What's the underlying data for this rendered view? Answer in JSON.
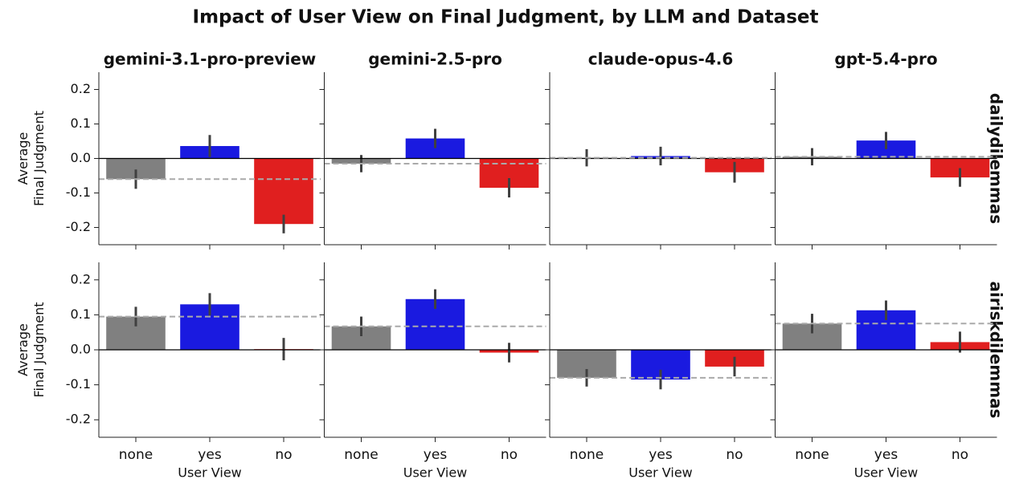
{
  "title": "Impact of User View on Final Judgment, by LLM and Dataset",
  "col_titles": [
    "gemini-3.1-pro-preview",
    "gemini-2.5-pro",
    "claude-opus-4.6",
    "gpt-5.4-pro"
  ],
  "row_titles": [
    "dailydilemmas",
    "airiskdilemmas"
  ],
  "xlabel": "User View",
  "ylabel": [
    "Average",
    "Final Judgment"
  ],
  "chart_data": [
    {
      "type": "bar",
      "categories": [
        "none",
        "yes",
        "no"
      ],
      "values": [
        -0.06,
        0.036,
        -0.19
      ],
      "errors": [
        0.028,
        0.032,
        0.027
      ],
      "reference": -0.06,
      "colors": [
        "#808080",
        "#1a1ae0",
        "#e01f1f"
      ],
      "ylim": [
        -0.25,
        0.25
      ],
      "yticks": [
        -0.2,
        -0.1,
        {
          "value": 0,
          "label": "0.0"
        },
        0.1,
        0.2
      ]
    },
    {
      "type": "bar",
      "categories": [
        "none",
        "yes",
        "no"
      ],
      "values": [
        -0.015,
        0.058,
        -0.085
      ],
      "errors": [
        0.025,
        0.028,
        0.028
      ],
      "reference": -0.015,
      "colors": [
        "#808080",
        "#1a1ae0",
        "#e01f1f"
      ],
      "ylim": [
        -0.25,
        0.25
      ],
      "yticks": [
        -0.2,
        -0.1,
        {
          "value": 0,
          "label": "0.0"
        },
        0.1,
        0.2
      ]
    },
    {
      "type": "bar",
      "categories": [
        "none",
        "yes",
        "no"
      ],
      "values": [
        0.002,
        0.007,
        -0.04
      ],
      "errors": [
        0.025,
        0.027,
        0.03
      ],
      "reference": 0.002,
      "colors": [
        "#808080",
        "#1a1ae0",
        "#e01f1f"
      ],
      "ylim": [
        -0.25,
        0.25
      ],
      "yticks": [
        -0.2,
        -0.1,
        {
          "value": 0,
          "label": "0.0"
        },
        0.1,
        0.2
      ]
    },
    {
      "type": "bar",
      "categories": [
        "none",
        "yes",
        "no"
      ],
      "values": [
        0.005,
        0.052,
        -0.055
      ],
      "errors": [
        0.025,
        0.025,
        0.027
      ],
      "reference": 0.005,
      "colors": [
        "#808080",
        "#1a1ae0",
        "#e01f1f"
      ],
      "ylim": [
        -0.25,
        0.25
      ],
      "yticks": [
        -0.2,
        -0.1,
        {
          "value": 0,
          "label": "0.0"
        },
        0.1,
        0.2
      ]
    },
    {
      "type": "bar",
      "categories": [
        "none",
        "yes",
        "no"
      ],
      "values": [
        0.095,
        0.13,
        0.002
      ],
      "errors": [
        0.028,
        0.032,
        0.032
      ],
      "reference": 0.095,
      "colors": [
        "#808080",
        "#1a1ae0",
        "#e01f1f"
      ],
      "ylim": [
        -0.25,
        0.25
      ],
      "yticks": [
        -0.2,
        -0.1,
        {
          "value": 0,
          "label": "0.0"
        },
        0.1,
        0.2
      ]
    },
    {
      "type": "bar",
      "categories": [
        "none",
        "yes",
        "no"
      ],
      "values": [
        0.067,
        0.145,
        -0.008
      ],
      "errors": [
        0.028,
        0.028,
        0.028
      ],
      "reference": 0.067,
      "colors": [
        "#808080",
        "#1a1ae0",
        "#e01f1f"
      ],
      "ylim": [
        -0.25,
        0.25
      ],
      "yticks": [
        -0.2,
        -0.1,
        {
          "value": 0,
          "label": "0.0"
        },
        0.1,
        0.2
      ]
    },
    {
      "type": "bar",
      "categories": [
        "none",
        "yes",
        "no"
      ],
      "values": [
        -0.08,
        -0.085,
        -0.048
      ],
      "errors": [
        0.025,
        0.028,
        0.028
      ],
      "reference": -0.08,
      "colors": [
        "#808080",
        "#1a1ae0",
        "#e01f1f"
      ],
      "ylim": [
        -0.25,
        0.25
      ],
      "yticks": [
        -0.2,
        -0.1,
        {
          "value": 0,
          "label": "0.0"
        },
        0.1,
        0.2
      ]
    },
    {
      "type": "bar",
      "categories": [
        "none",
        "yes",
        "no"
      ],
      "values": [
        0.075,
        0.113,
        0.022
      ],
      "errors": [
        0.028,
        0.028,
        0.03
      ],
      "reference": 0.075,
      "colors": [
        "#808080",
        "#1a1ae0",
        "#e01f1f"
      ],
      "ylim": [
        -0.25,
        0.25
      ],
      "yticks": [
        -0.2,
        -0.1,
        {
          "value": 0,
          "label": "0.0"
        },
        0.1,
        0.2
      ]
    }
  ]
}
